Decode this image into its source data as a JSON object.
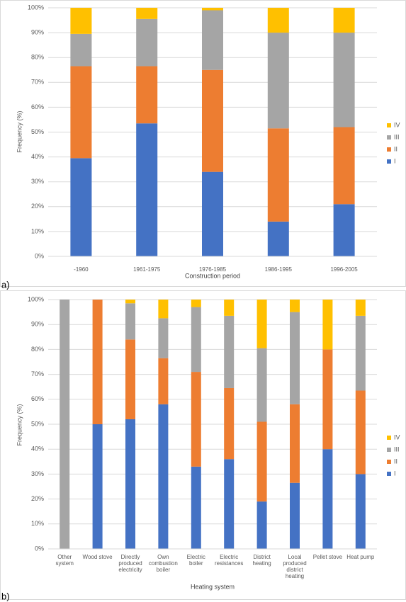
{
  "chart_data": [
    {
      "type": "stacked-bar",
      "panel_label": "a)",
      "x_label": "Construction period",
      "y_label": "Frequency (%)",
      "categories": [
        "-1960",
        "1961-1975",
        "1976-1985",
        "1986-1995",
        "1996-2005"
      ],
      "series": [
        {
          "name": "I",
          "color": "#4472c4",
          "values": [
            39.5,
            53.5,
            34,
            14,
            21
          ]
        },
        {
          "name": "II",
          "color": "#ed7d31",
          "values": [
            37,
            23,
            41,
            37.5,
            31
          ]
        },
        {
          "name": "III",
          "color": "#a5a5a5",
          "values": [
            13,
            19,
            24,
            38.5,
            38
          ]
        },
        {
          "name": "IV",
          "color": "#ffc000",
          "values": [
            10.5,
            4.5,
            1,
            10,
            10
          ]
        }
      ],
      "ylim": [
        0,
        100
      ],
      "yticks": [
        {
          "value": 0,
          "label": "0%"
        },
        {
          "value": 10,
          "label": "10%"
        },
        {
          "value": 20,
          "label": "20%"
        },
        {
          "value": 30,
          "label": "30%"
        },
        {
          "value": 40,
          "label": "40%"
        },
        {
          "value": 50,
          "label": "50%"
        },
        {
          "value": 60,
          "label": "60%"
        },
        {
          "value": 70,
          "label": "70%"
        },
        {
          "value": 80,
          "label": "80%"
        },
        {
          "value": 90,
          "label": "90%"
        },
        {
          "value": 100,
          "label": "100%"
        }
      ],
      "grid": true,
      "legend": "right"
    },
    {
      "type": "stacked-bar",
      "panel_label": "b)",
      "x_label": "Heating system",
      "y_label": "Frequency (%)",
      "categories": [
        "Other system",
        "Wood stove",
        "Directly produced electricity",
        "Own combustion boiler",
        "Electric boiler",
        "Electric resistances",
        "District heating",
        "Local produced district heating",
        "Pellet stove",
        "Heat pump"
      ],
      "series": [
        {
          "name": "I",
          "color": "#4472c4",
          "values": [
            0,
            50,
            52,
            58,
            33,
            36,
            19,
            26.5,
            40,
            30
          ]
        },
        {
          "name": "II",
          "color": "#ed7d31",
          "values": [
            0,
            50,
            32,
            18.5,
            38,
            28.5,
            32,
            31.5,
            40,
            33.5
          ]
        },
        {
          "name": "III",
          "color": "#a5a5a5",
          "values": [
            100,
            0,
            14.5,
            16,
            26,
            29,
            29.5,
            37,
            0,
            30
          ]
        },
        {
          "name": "IV",
          "color": "#ffc000",
          "values": [
            0,
            0,
            1.5,
            7.5,
            3,
            6.5,
            19.5,
            5,
            20,
            6.5
          ]
        }
      ],
      "ylim": [
        0,
        100
      ],
      "yticks": [
        {
          "value": 0,
          "label": "0%"
        },
        {
          "value": 10,
          "label": "10%"
        },
        {
          "value": 20,
          "label": "20%"
        },
        {
          "value": 30,
          "label": "30%"
        },
        {
          "value": 40,
          "label": "40%"
        },
        {
          "value": 50,
          "label": "50%"
        },
        {
          "value": 60,
          "label": "60%"
        },
        {
          "value": 70,
          "label": "70%"
        },
        {
          "value": 80,
          "label": "80%"
        },
        {
          "value": 90,
          "label": "90%"
        },
        {
          "value": 100,
          "label": "100%"
        }
      ],
      "grid": true,
      "legend": "right"
    }
  ]
}
